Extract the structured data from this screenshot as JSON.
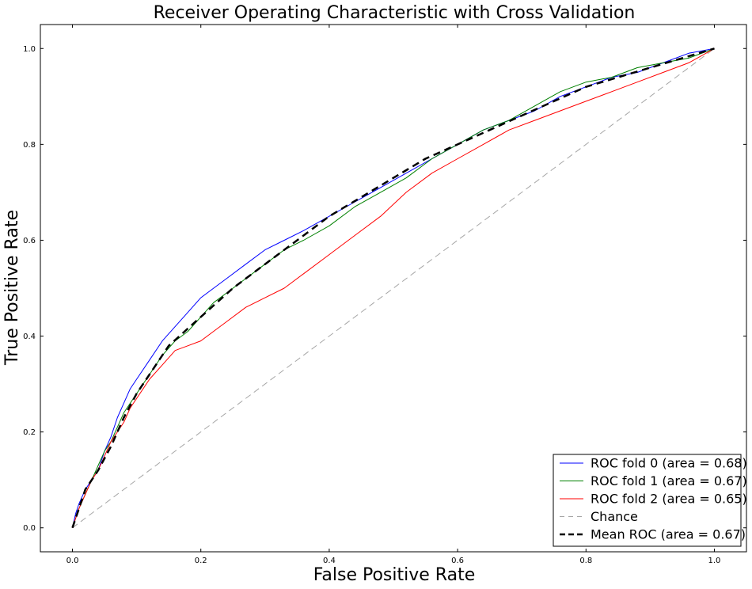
{
  "chart_data": {
    "type": "line",
    "title": "Receiver Operating Characteristic with Cross Validation",
    "xlabel": "False Positive Rate",
    "ylabel": "True Positive Rate",
    "xlim": [
      -0.05,
      1.05
    ],
    "ylim": [
      -0.05,
      1.05
    ],
    "xticks": [
      0.0,
      0.2,
      0.4,
      0.6,
      0.8,
      1.0
    ],
    "yticks": [
      0.0,
      0.2,
      0.4,
      0.6,
      0.8,
      1.0
    ],
    "xtick_labels": [
      "0.0",
      "0.2",
      "0.4",
      "0.6",
      "0.8",
      "1.0"
    ],
    "ytick_labels": [
      "0.0",
      "0.2",
      "0.4",
      "0.6",
      "0.8",
      "1.0"
    ],
    "grid": false,
    "legend_position": "lower-right",
    "series": [
      {
        "name": "ROC fold 0 (area = 0.68)",
        "color": "#0000ff",
        "style": "solid",
        "x": [
          0.0,
          0.005,
          0.01,
          0.02,
          0.03,
          0.04,
          0.05,
          0.06,
          0.07,
          0.08,
          0.09,
          0.1,
          0.12,
          0.14,
          0.16,
          0.18,
          0.2,
          0.22,
          0.24,
          0.27,
          0.3,
          0.33,
          0.36,
          0.4,
          0.44,
          0.48,
          0.52,
          0.56,
          0.6,
          0.64,
          0.68,
          0.72,
          0.76,
          0.8,
          0.84,
          0.88,
          0.92,
          0.96,
          1.0
        ],
        "y": [
          0.0,
          0.03,
          0.05,
          0.08,
          0.1,
          0.12,
          0.16,
          0.19,
          0.23,
          0.26,
          0.29,
          0.31,
          0.35,
          0.39,
          0.42,
          0.45,
          0.48,
          0.5,
          0.52,
          0.55,
          0.58,
          0.6,
          0.62,
          0.65,
          0.68,
          0.71,
          0.74,
          0.77,
          0.8,
          0.83,
          0.85,
          0.87,
          0.9,
          0.92,
          0.94,
          0.95,
          0.97,
          0.99,
          1.0
        ]
      },
      {
        "name": "ROC fold 1 (area = 0.67)",
        "color": "#008000",
        "style": "solid",
        "x": [
          0.0,
          0.005,
          0.01,
          0.02,
          0.03,
          0.04,
          0.05,
          0.06,
          0.07,
          0.08,
          0.09,
          0.1,
          0.12,
          0.14,
          0.16,
          0.18,
          0.2,
          0.22,
          0.24,
          0.27,
          0.3,
          0.33,
          0.36,
          0.4,
          0.44,
          0.48,
          0.52,
          0.56,
          0.6,
          0.64,
          0.68,
          0.72,
          0.76,
          0.8,
          0.84,
          0.88,
          0.92,
          0.96,
          1.0
        ],
        "y": [
          0.0,
          0.02,
          0.04,
          0.07,
          0.1,
          0.13,
          0.16,
          0.18,
          0.21,
          0.24,
          0.26,
          0.28,
          0.32,
          0.36,
          0.39,
          0.41,
          0.44,
          0.47,
          0.49,
          0.52,
          0.55,
          0.58,
          0.6,
          0.63,
          0.67,
          0.7,
          0.73,
          0.77,
          0.8,
          0.83,
          0.85,
          0.88,
          0.91,
          0.93,
          0.94,
          0.96,
          0.97,
          0.98,
          1.0
        ]
      },
      {
        "name": "ROC fold 2 (area = 0.65)",
        "color": "#ff0000",
        "style": "solid",
        "x": [
          0.0,
          0.005,
          0.01,
          0.02,
          0.03,
          0.04,
          0.05,
          0.06,
          0.07,
          0.08,
          0.09,
          0.1,
          0.12,
          0.14,
          0.16,
          0.18,
          0.2,
          0.22,
          0.24,
          0.27,
          0.3,
          0.33,
          0.36,
          0.4,
          0.44,
          0.48,
          0.52,
          0.56,
          0.6,
          0.64,
          0.68,
          0.72,
          0.76,
          0.8,
          0.84,
          0.88,
          0.92,
          0.96,
          1.0
        ],
        "y": [
          0.0,
          0.02,
          0.04,
          0.07,
          0.1,
          0.12,
          0.15,
          0.18,
          0.2,
          0.22,
          0.25,
          0.27,
          0.31,
          0.34,
          0.37,
          0.38,
          0.39,
          0.41,
          0.43,
          0.46,
          0.48,
          0.5,
          0.53,
          0.57,
          0.61,
          0.65,
          0.7,
          0.74,
          0.77,
          0.8,
          0.83,
          0.85,
          0.87,
          0.89,
          0.91,
          0.93,
          0.95,
          0.97,
          1.0
        ]
      },
      {
        "name": "Chance",
        "color": "#a6a6a6",
        "style": "dashed",
        "x": [
          0.0,
          1.0
        ],
        "y": [
          0.0,
          1.0
        ]
      },
      {
        "name": "Mean ROC (area = 0.67)",
        "color": "#000000",
        "style": "dashed-bold",
        "x": [
          0.0,
          0.01,
          0.02,
          0.04,
          0.06,
          0.08,
          0.1,
          0.12,
          0.15,
          0.2,
          0.25,
          0.3,
          0.35,
          0.4,
          0.45,
          0.5,
          0.55,
          0.6,
          0.65,
          0.7,
          0.75,
          0.8,
          0.85,
          0.9,
          0.95,
          1.0
        ],
        "y": [
          0.0,
          0.04,
          0.08,
          0.12,
          0.17,
          0.23,
          0.28,
          0.32,
          0.38,
          0.44,
          0.5,
          0.55,
          0.6,
          0.65,
          0.69,
          0.73,
          0.77,
          0.8,
          0.83,
          0.86,
          0.89,
          0.92,
          0.94,
          0.96,
          0.98,
          1.0
        ]
      }
    ]
  }
}
